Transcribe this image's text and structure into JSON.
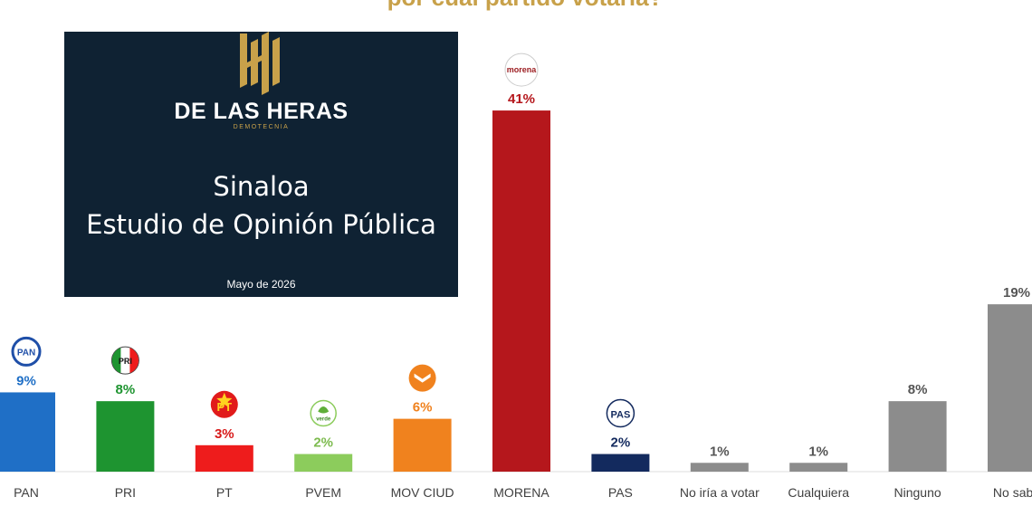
{
  "chart_data": {
    "type": "bar",
    "title": "por cual partido votaría?",
    "categories": [
      "PAN",
      "PRI",
      "PT",
      "PVEM",
      "MOV CIUD",
      "MORENA",
      "PAS",
      "No iría a votar",
      "Cualquiera",
      "Ninguno",
      "No sabe"
    ],
    "values": [
      9,
      8,
      3,
      2,
      6,
      41,
      2,
      1,
      1,
      8,
      19
    ],
    "value_labels": [
      "9%",
      "8%",
      "3%",
      "2%",
      "6%",
      "41%",
      "2%",
      "1%",
      "1%",
      "8%",
      "19%"
    ],
    "colors": [
      "#1f6fc6",
      "#1e9430",
      "#ee1c1c",
      "#8ccc5c",
      "#f0821e",
      "#b5171c",
      "#132a5e",
      "#8c8c8c",
      "#8c8c8c",
      "#8c8c8c",
      "#8c8c8c"
    ],
    "label_colors": [
      "#1f6fc6",
      "#1e9430",
      "#d81a1a",
      "#7dbb4f",
      "#f0821e",
      "#b5171c",
      "#132a5e",
      "#555555",
      "#555555",
      "#555555",
      "#555555"
    ],
    "logos": [
      "pan-logo",
      "pri-logo",
      "pt-logo",
      "pvem-logo",
      "movimiento-ciudadano-logo",
      "morena-logo",
      "pas-logo",
      "",
      "",
      "",
      ""
    ],
    "logo_texts": [
      "PAN",
      "PRI",
      "PT",
      "verde",
      "",
      "morena",
      "PAS",
      "",
      "",
      "",
      ""
    ],
    "ylim": [
      0,
      45
    ],
    "xlabel": "",
    "ylabel": "",
    "grid": false,
    "legend": "none"
  },
  "cover": {
    "brand": "DE LAS HERAS",
    "subbrand": "DEMOTECNIA",
    "title_line1": "Sinaloa",
    "title_line2": "Estudio de Opinión Pública",
    "date": "Mayo de 2026",
    "bg_color": "#0f2233",
    "accent_color": "#c8a14a"
  }
}
